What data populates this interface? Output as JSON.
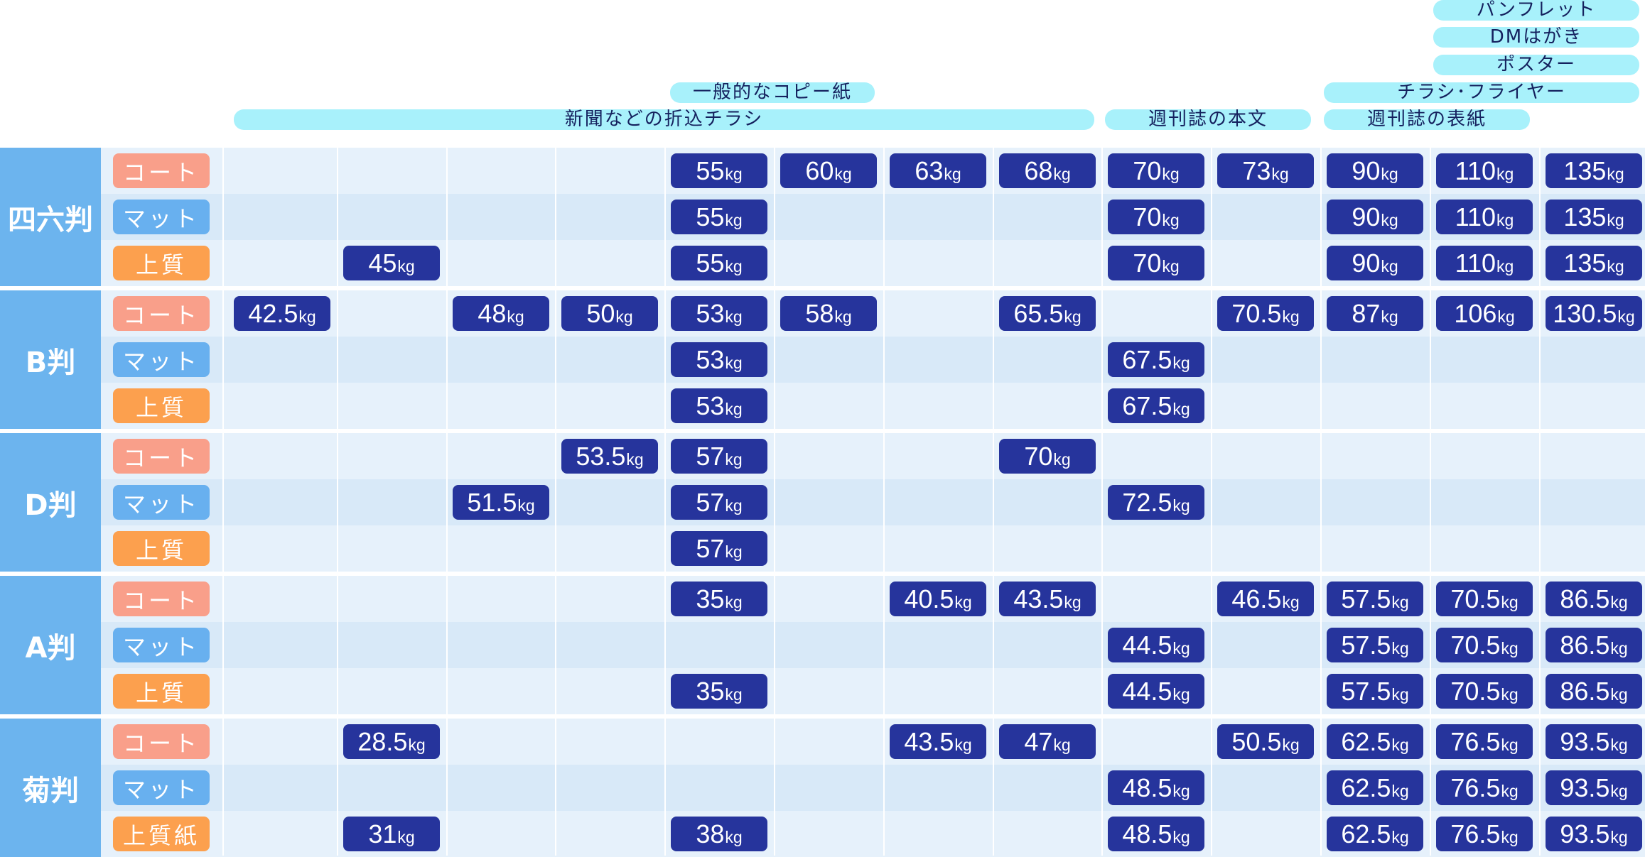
{
  "headers": [
    {
      "label": "新聞などの折込チラシ"
    },
    {
      "label": "一般的なコピー紙"
    },
    {
      "label": "週刊誌の本文"
    },
    {
      "label": "週刊誌の表紙"
    },
    {
      "label": "チラシ･フライヤー"
    },
    {
      "label": "ポスター"
    },
    {
      "label": "DMはがき"
    },
    {
      "label": "パンフレット"
    }
  ],
  "unit": "kg",
  "groups": [
    {
      "label": "四六判",
      "rows": [
        {
          "type": "コート",
          "kind": "coat",
          "values": [
            "",
            "",
            "",
            "",
            "55",
            "60",
            "63",
            "68",
            "70",
            "73",
            "90",
            "110",
            "135"
          ]
        },
        {
          "type": "マット",
          "kind": "matte",
          "values": [
            "",
            "",
            "",
            "",
            "55",
            "",
            "",
            "",
            "70",
            "",
            "90",
            "110",
            "135"
          ]
        },
        {
          "type": "上質",
          "kind": "jo",
          "values": [
            "",
            "45",
            "",
            "",
            "55",
            "",
            "",
            "",
            "70",
            "",
            "90",
            "110",
            "135"
          ]
        }
      ]
    },
    {
      "label": "B判",
      "rows": [
        {
          "type": "コート",
          "kind": "coat",
          "values": [
            "42.5",
            "",
            "48",
            "50",
            "53",
            "58",
            "",
            "65.5",
            "",
            "70.5",
            "87",
            "106",
            "130.5"
          ]
        },
        {
          "type": "マット",
          "kind": "matte",
          "values": [
            "",
            "",
            "",
            "",
            "53",
            "",
            "",
            "",
            "67.5",
            "",
            "",
            "",
            ""
          ]
        },
        {
          "type": "上質",
          "kind": "jo",
          "values": [
            "",
            "",
            "",
            "",
            "53",
            "",
            "",
            "",
            "67.5",
            "",
            "",
            "",
            ""
          ]
        }
      ]
    },
    {
      "label": "D判",
      "rows": [
        {
          "type": "コート",
          "kind": "coat",
          "values": [
            "",
            "",
            "",
            "53.5",
            "57",
            "",
            "",
            "70",
            "",
            "",
            "",
            "",
            ""
          ]
        },
        {
          "type": "マット",
          "kind": "matte",
          "values": [
            "",
            "",
            "51.5",
            "",
            "57",
            "",
            "",
            "",
            "72.5",
            "",
            "",
            "",
            ""
          ]
        },
        {
          "type": "上質",
          "kind": "jo",
          "values": [
            "",
            "",
            "",
            "",
            "57",
            "",
            "",
            "",
            "",
            "",
            "",
            "",
            ""
          ]
        }
      ]
    },
    {
      "label": "A判",
      "rows": [
        {
          "type": "コート",
          "kind": "coat",
          "values": [
            "",
            "",
            "",
            "",
            "35",
            "",
            "40.5",
            "43.5",
            "",
            "46.5",
            "57.5",
            "70.5",
            "86.5"
          ]
        },
        {
          "type": "マット",
          "kind": "matte",
          "values": [
            "",
            "",
            "",
            "",
            "",
            "",
            "",
            "",
            "44.5",
            "",
            "57.5",
            "70.5",
            "86.5"
          ]
        },
        {
          "type": "上質",
          "kind": "jo",
          "values": [
            "",
            "",
            "",
            "",
            "35",
            "",
            "",
            "",
            "44.5",
            "",
            "57.5",
            "70.5",
            "86.5"
          ]
        }
      ]
    },
    {
      "label": "菊判",
      "rows": [
        {
          "type": "コート",
          "kind": "coat",
          "values": [
            "",
            "28.5",
            "",
            "",
            "",
            "",
            "43.5",
            "47",
            "",
            "50.5",
            "62.5",
            "76.5",
            "93.5"
          ]
        },
        {
          "type": "マット",
          "kind": "matte",
          "values": [
            "",
            "",
            "",
            "",
            "",
            "",
            "",
            "",
            "48.5",
            "",
            "62.5",
            "76.5",
            "93.5"
          ]
        },
        {
          "type": "上質紙",
          "kind": "jo",
          "values": [
            "",
            "31",
            "",
            "",
            "38",
            "",
            "",
            "",
            "48.5",
            "",
            "62.5",
            "76.5",
            "93.5"
          ]
        }
      ]
    }
  ],
  "colors": {
    "header_pill": "#a8f1fb",
    "group_label_bg": "#6cb4ee",
    "coat_label": "#f99f8a",
    "matte_label": "#68b0ef",
    "jo_label": "#fca04e",
    "value_bg": "#26349c",
    "row_light": "#e6f1fb",
    "row_dark": "#d8e9f8"
  }
}
